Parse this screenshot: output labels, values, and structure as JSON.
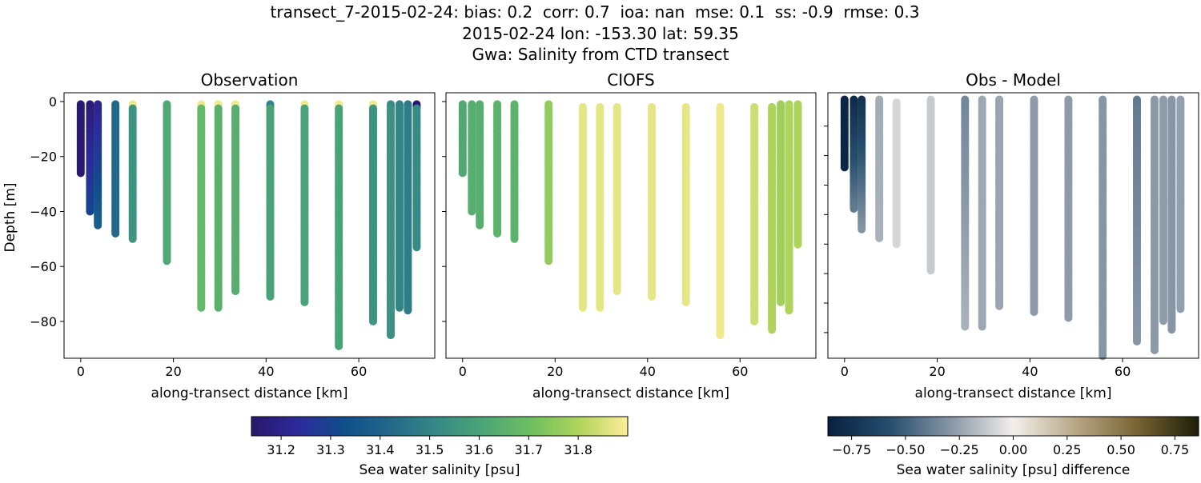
{
  "suptitle": [
    "transect_7-2015-02-24: bias: 0.2  corr: 0.7  ioa: nan  mse: 0.1  ss: -0.9  rmse: 0.3",
    "2015-02-24 lon: -153.30 lat: 59.35",
    "Gwa: Salinity from CTD transect"
  ],
  "chart_data": [
    {
      "type": "scatter",
      "title": "Observation",
      "xlabel": "along-transect distance [km]",
      "ylabel": "Depth [m]",
      "xlim": [
        -3.6,
        76.4
      ],
      "ylim": [
        -93.4,
        3.2
      ],
      "xticks": [
        "0",
        "20",
        "40",
        "60"
      ],
      "yticks": [
        "0",
        "−20",
        "−40",
        "−60",
        "−80"
      ],
      "colormap": "haline",
      "stations": [
        {
          "x": 0.0,
          "top": -1,
          "bottom": -26,
          "value_top": 31.15,
          "value_bottom": 31.15
        },
        {
          "x": 2.0,
          "top": -1,
          "bottom": -40,
          "value_top": 31.16,
          "value_bottom": 31.3
        },
        {
          "x": 3.7,
          "top": -1,
          "bottom": -45,
          "value_top": 31.2,
          "value_bottom": 31.38
        },
        {
          "x": 7.5,
          "top": -1,
          "bottom": -48,
          "value_top": 31.42,
          "value_bottom": 31.42
        },
        {
          "x": 11.2,
          "top": -1,
          "bottom": -50,
          "value_top": 31.88,
          "value_bottom": 31.55
        },
        {
          "x": 18.6,
          "top": -1,
          "bottom": -58,
          "value_top": 31.62,
          "value_bottom": 31.62
        },
        {
          "x": 26.0,
          "top": -1,
          "bottom": -75,
          "value_top": 31.88,
          "value_bottom": 31.68
        },
        {
          "x": 29.7,
          "top": -1,
          "bottom": -75,
          "value_top": 31.88,
          "value_bottom": 31.65
        },
        {
          "x": 33.4,
          "top": -1,
          "bottom": -69,
          "value_top": 31.88,
          "value_bottom": 31.64
        },
        {
          "x": 40.9,
          "top": -1,
          "bottom": -71,
          "value_top": 31.5,
          "value_bottom": 31.6
        },
        {
          "x": 48.3,
          "top": -1,
          "bottom": -73,
          "value_top": 31.88,
          "value_bottom": 31.6
        },
        {
          "x": 55.7,
          "top": -1,
          "bottom": -89,
          "value_top": 31.88,
          "value_bottom": 31.6
        },
        {
          "x": 63.1,
          "top": -1,
          "bottom": -80,
          "value_top": 31.88,
          "value_bottom": 31.55
        },
        {
          "x": 66.9,
          "top": -1,
          "bottom": -85,
          "value_top": 31.52,
          "value_bottom": 31.54
        },
        {
          "x": 68.8,
          "top": -1,
          "bottom": -75,
          "value_top": 31.5,
          "value_bottom": 31.5
        },
        {
          "x": 70.6,
          "top": -1,
          "bottom": -76,
          "value_top": 31.47,
          "value_bottom": 31.48
        },
        {
          "x": 72.5,
          "top": -1,
          "bottom": -53,
          "value_top": 31.15,
          "value_bottom": 31.52
        }
      ]
    },
    {
      "type": "scatter",
      "title": "CIOFS",
      "xlabel": "along-transect distance [km]",
      "xlim": [
        -3.6,
        76.4
      ],
      "ylim": [
        -93.4,
        3.2
      ],
      "xticks": [
        "0",
        "20",
        "40",
        "60"
      ],
      "colormap": "haline",
      "stations": [
        {
          "x": 0.0,
          "top": -1,
          "bottom": -26,
          "value_top": 31.62,
          "value_bottom": 31.62
        },
        {
          "x": 2.0,
          "top": -1,
          "bottom": -40,
          "value_top": 31.64,
          "value_bottom": 31.64
        },
        {
          "x": 3.7,
          "top": -1,
          "bottom": -45,
          "value_top": 31.64,
          "value_bottom": 31.64
        },
        {
          "x": 7.5,
          "top": -1,
          "bottom": -48,
          "value_top": 31.66,
          "value_bottom": 31.66
        },
        {
          "x": 11.2,
          "top": -1,
          "bottom": -50,
          "value_top": 31.66,
          "value_bottom": 31.66
        },
        {
          "x": 18.6,
          "top": -1,
          "bottom": -58,
          "value_top": 31.76,
          "value_bottom": 31.76
        },
        {
          "x": 26.0,
          "top": -2,
          "bottom": -75,
          "value_top": 31.87,
          "value_bottom": 31.87
        },
        {
          "x": 29.7,
          "top": -2,
          "bottom": -75,
          "value_top": 31.87,
          "value_bottom": 31.87
        },
        {
          "x": 33.4,
          "top": -2,
          "bottom": -69,
          "value_top": 31.87,
          "value_bottom": 31.87
        },
        {
          "x": 40.9,
          "top": -2,
          "bottom": -71,
          "value_top": 31.87,
          "value_bottom": 31.87
        },
        {
          "x": 48.3,
          "top": -2,
          "bottom": -73,
          "value_top": 31.87,
          "value_bottom": 31.87
        },
        {
          "x": 55.7,
          "top": -2,
          "bottom": -85,
          "value_top": 31.88,
          "value_bottom": 31.88
        },
        {
          "x": 63.1,
          "top": -2,
          "bottom": -80,
          "value_top": 31.84,
          "value_bottom": 31.84
        },
        {
          "x": 66.9,
          "top": -2,
          "bottom": -83,
          "value_top": 31.8,
          "value_bottom": 31.8
        },
        {
          "x": 68.8,
          "top": -1,
          "bottom": -73,
          "value_top": 31.78,
          "value_bottom": 31.78
        },
        {
          "x": 70.6,
          "top": -1,
          "bottom": -76,
          "value_top": 31.8,
          "value_bottom": 31.8
        },
        {
          "x": 72.5,
          "top": -1,
          "bottom": -52,
          "value_top": 31.8,
          "value_bottom": 31.8
        }
      ]
    },
    {
      "type": "scatter",
      "title": "Obs - Model",
      "xlabel": "along-transect distance [km]",
      "xlim": [
        -3.6,
        76.4
      ],
      "ylim": [
        -88.7,
        1.3
      ],
      "xticks": [
        "0",
        "20",
        "40",
        "60"
      ],
      "colormap": "diff",
      "stations": [
        {
          "x": 0.0,
          "top": -1,
          "bottom": -24,
          "value_top": -0.82,
          "value_bottom": -0.82
        },
        {
          "x": 2.0,
          "top": -1,
          "bottom": -38,
          "value_top": -0.8,
          "value_bottom": -0.4
        },
        {
          "x": 3.7,
          "top": -1,
          "bottom": -45,
          "value_top": -0.75,
          "value_bottom": -0.3
        },
        {
          "x": 7.5,
          "top": -1,
          "bottom": -48,
          "value_top": -0.22,
          "value_bottom": -0.2
        },
        {
          "x": 11.2,
          "top": -2,
          "bottom": -50,
          "value_top": -0.08,
          "value_bottom": -0.08
        },
        {
          "x": 18.6,
          "top": -1,
          "bottom": -59,
          "value_top": -0.12,
          "value_bottom": -0.12
        },
        {
          "x": 26.0,
          "top": -1,
          "bottom": -78,
          "value_top": -0.35,
          "value_bottom": -0.2
        },
        {
          "x": 29.7,
          "top": -1,
          "bottom": -78,
          "value_top": -0.23,
          "value_bottom": -0.23
        },
        {
          "x": 33.4,
          "top": -1,
          "bottom": -71,
          "value_top": -0.24,
          "value_bottom": -0.24
        },
        {
          "x": 40.9,
          "top": -1,
          "bottom": -73,
          "value_top": -0.27,
          "value_bottom": -0.27
        },
        {
          "x": 48.3,
          "top": -1,
          "bottom": -75,
          "value_top": -0.27,
          "value_bottom": -0.27
        },
        {
          "x": 55.7,
          "top": -1,
          "bottom": -88,
          "value_top": -0.29,
          "value_bottom": -0.29
        },
        {
          "x": 63.1,
          "top": -1,
          "bottom": -83,
          "value_top": -0.4,
          "value_bottom": -0.29
        },
        {
          "x": 66.9,
          "top": -1,
          "bottom": -86,
          "value_top": -0.28,
          "value_bottom": -0.28
        },
        {
          "x": 68.8,
          "top": -1,
          "bottom": -76,
          "value_top": -0.27,
          "value_bottom": -0.27
        },
        {
          "x": 70.6,
          "top": -1,
          "bottom": -79,
          "value_top": -0.29,
          "value_bottom": -0.29
        },
        {
          "x": 72.5,
          "top": -1,
          "bottom": -72,
          "value_top": -0.26,
          "value_bottom": -0.26
        }
      ]
    }
  ],
  "colorbars": [
    {
      "label": "Sea water salinity [psu]",
      "range": [
        31.14,
        31.9
      ],
      "ticks": [
        "31.2",
        "31.3",
        "31.4",
        "31.5",
        "31.6",
        "31.7",
        "31.8"
      ],
      "tick_values": [
        31.2,
        31.3,
        31.4,
        31.5,
        31.6,
        31.7,
        31.8
      ],
      "colors": [
        "#29186b",
        "#2c2a9c",
        "#0f4f8b",
        "#24698a",
        "#378b85",
        "#4ea775",
        "#70c060",
        "#b2d55c",
        "#fdee99"
      ]
    },
    {
      "label": "Sea water salinity [psu] difference",
      "range": [
        -0.86,
        0.86
      ],
      "ticks": [
        "−0.75",
        "−0.50",
        "−0.25",
        "0.00",
        "0.25",
        "0.50",
        "0.75"
      ],
      "tick_values": [
        -0.75,
        -0.5,
        -0.25,
        0,
        0.25,
        0.5,
        0.75
      ],
      "colors": [
        "#08203f",
        "#254e6e",
        "#8897a6",
        "#f4efec",
        "#b8a785",
        "#786433",
        "#1d1e08"
      ]
    }
  ]
}
